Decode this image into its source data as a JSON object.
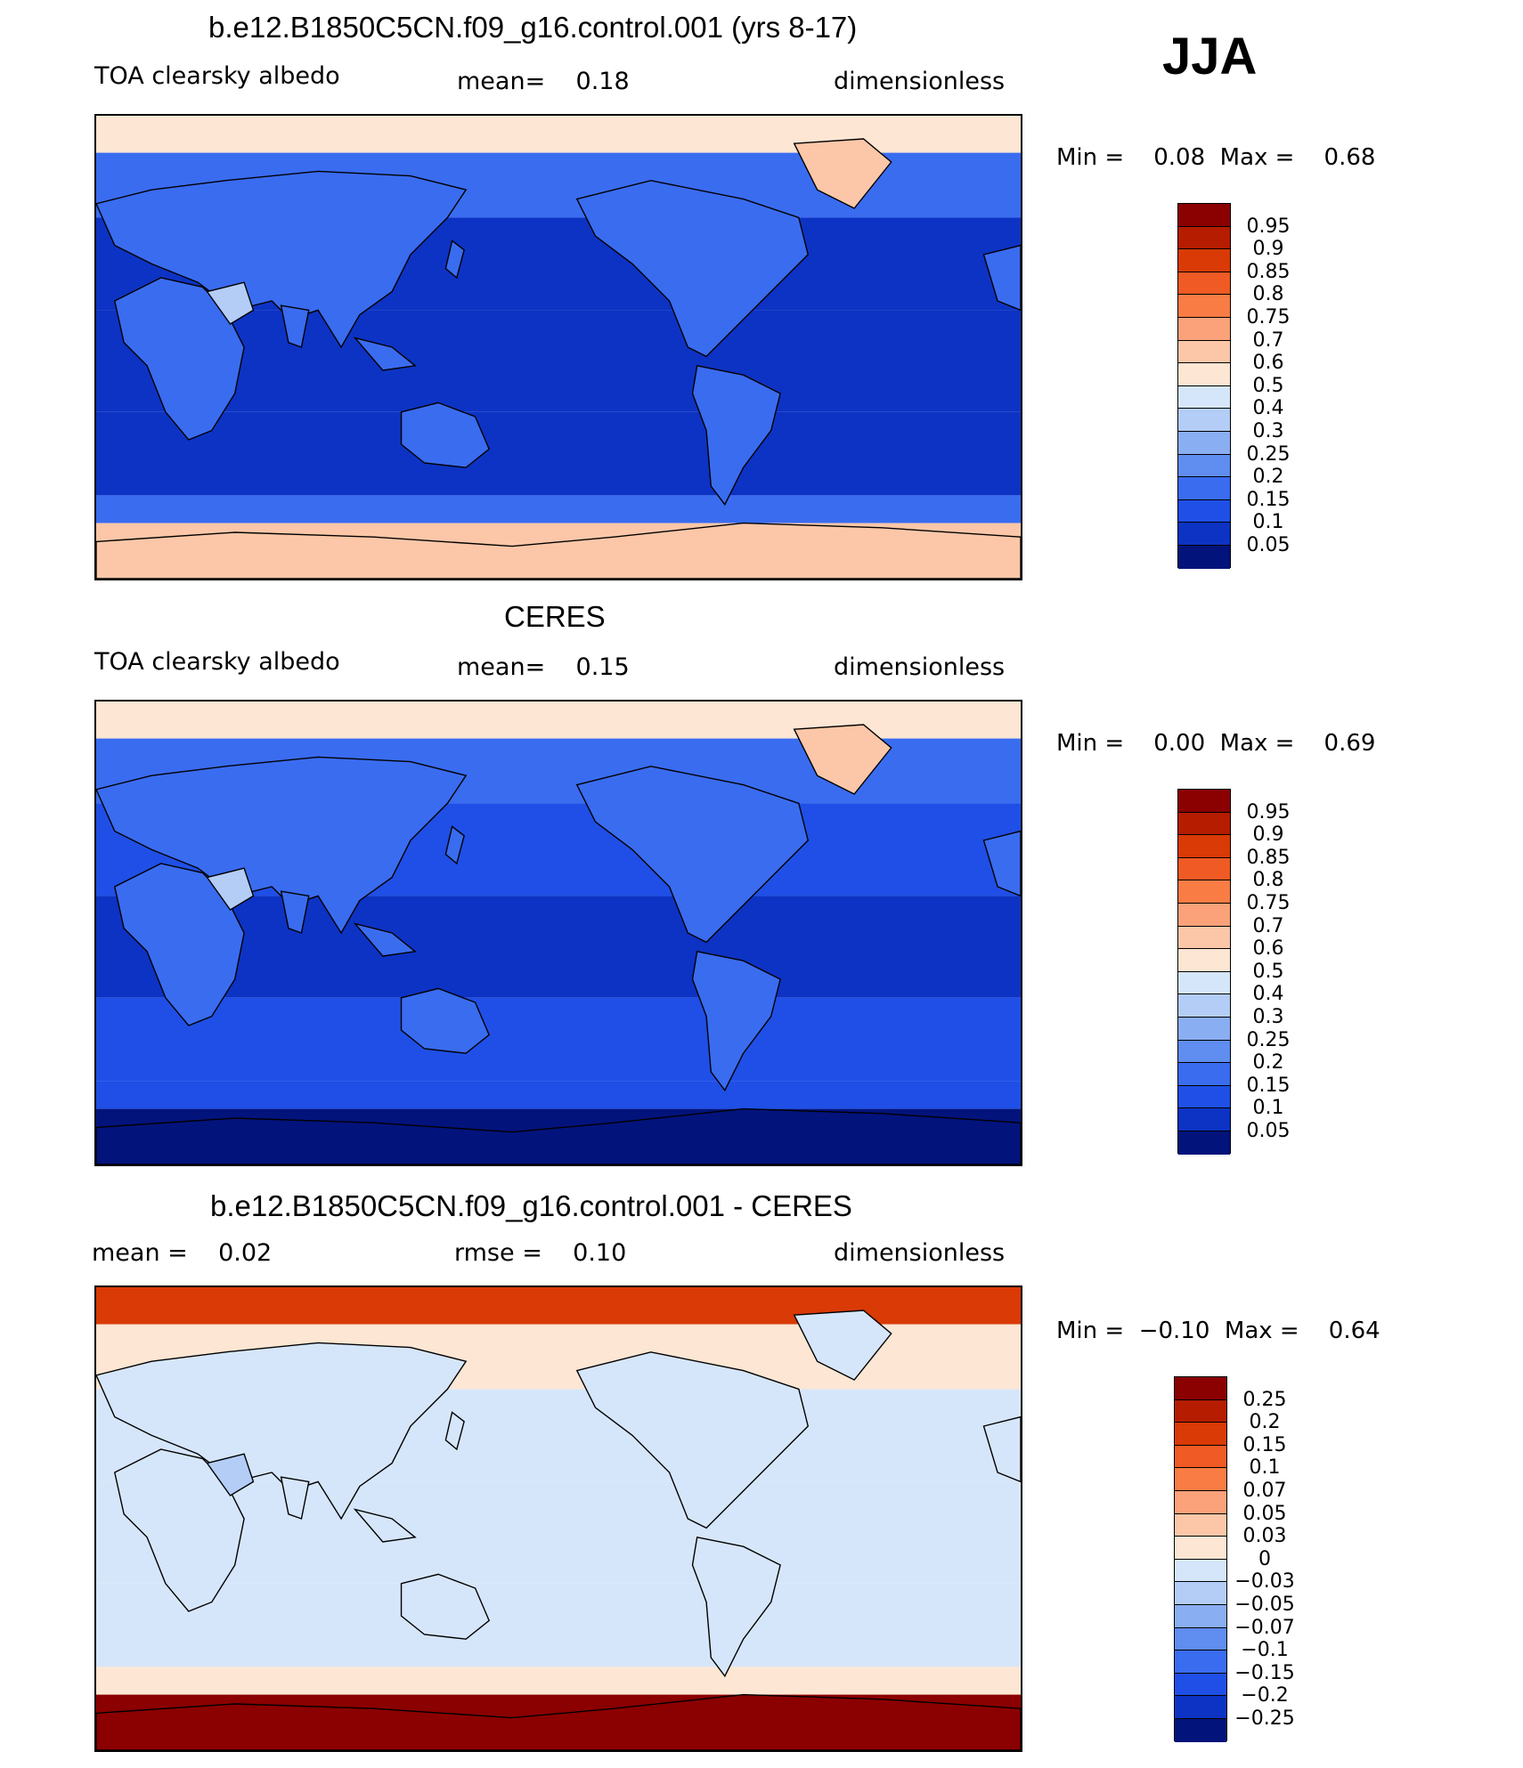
{
  "season": "JJA",
  "panels": [
    {
      "id": "model",
      "title": "b.e12.B1850C5CN.f09_g16.control.001 (yrs 8-17)",
      "left_label": "TOA clearsky albedo",
      "center_label": "mean=    0.18",
      "right_label": "dimensionless",
      "minmax": "Min =    0.08  Max =    0.68",
      "colorbar": {
        "labels": [
          "0.95",
          "0.9",
          "0.85",
          "0.8",
          "0.75",
          "0.7",
          "0.6",
          "0.5",
          "0.4",
          "0.3",
          "0.25",
          "0.2",
          "0.15",
          "0.1",
          "0.05"
        ],
        "colors": [
          "#8b0000",
          "#b51c00",
          "#d93a06",
          "#f05a24",
          "#f97c45",
          "#fba27a",
          "#fcc7a8",
          "#fde6d3",
          "#d6e6fa",
          "#b3cdf7",
          "#8aaef2",
          "#5f8df0",
          "#3a6cf0",
          "#1f4fe6",
          "#0d33c4",
          "#03137c"
        ]
      }
    },
    {
      "id": "obs",
      "title": "CERES",
      "left_label": "TOA clearsky albedo",
      "center_label": "mean=    0.15",
      "right_label": "dimensionless",
      "minmax": "Min =    0.00  Max =    0.69",
      "colorbar": {
        "labels": [
          "0.95",
          "0.9",
          "0.85",
          "0.8",
          "0.75",
          "0.7",
          "0.6",
          "0.5",
          "0.4",
          "0.3",
          "0.25",
          "0.2",
          "0.15",
          "0.1",
          "0.05"
        ],
        "colors": [
          "#8b0000",
          "#b51c00",
          "#d93a06",
          "#f05a24",
          "#f97c45",
          "#fba27a",
          "#fcc7a8",
          "#fde6d3",
          "#d6e6fa",
          "#b3cdf7",
          "#8aaef2",
          "#5f8df0",
          "#3a6cf0",
          "#1f4fe6",
          "#0d33c4",
          "#03137c"
        ]
      }
    },
    {
      "id": "diff",
      "title": "b.e12.B1850C5CN.f09_g16.control.001 - CERES",
      "left_label": "mean =    0.02",
      "center_label": "rmse =    0.10",
      "right_label": "dimensionless",
      "minmax": "Min =  −0.10  Max =    0.64",
      "colorbar": {
        "labels": [
          "0.25",
          "0.2",
          "0.15",
          "0.1",
          "0.07",
          "0.05",
          "0.03",
          "0",
          "−0.03",
          "−0.05",
          "−0.07",
          "−0.1",
          "−0.15",
          "−0.2",
          "−0.25"
        ],
        "colors": [
          "#8b0000",
          "#b51c00",
          "#d93a06",
          "#f05a24",
          "#f97c45",
          "#fba27a",
          "#fcc7a8",
          "#fde6d3",
          "#d6e6fa",
          "#b3cdf7",
          "#8aaef2",
          "#5f8df0",
          "#3a6cf0",
          "#1f4fe6",
          "#0d33c4",
          "#03137c"
        ]
      }
    }
  ],
  "map_fill": {
    "model": {
      "polar_north": "#fde6d3",
      "high_lat": "#3a6cf0",
      "ocean": "#0d33c4",
      "tropics": "#0d33c4",
      "land": "#3a6cf0",
      "desert": "#b3cdf7",
      "south_ocean": "#3a6cf0",
      "antarctic": "#fcc7a8",
      "greenland": "#fcc7a8"
    },
    "obs": {
      "polar_north": "#fde6d3",
      "high_lat": "#3a6cf0",
      "ocean": "#1f4fe6",
      "tropics": "#0d33c4",
      "land": "#3a6cf0",
      "desert": "#b3cdf7",
      "south_ocean": "#1f4fe6",
      "antarctic": "#03137c",
      "greenland": "#fcc7a8"
    },
    "diff": {
      "polar_north": "#d93a06",
      "high_lat": "#fde6d3",
      "ocean": "#d6e6fa",
      "tropics": "#d6e6fa",
      "land": "#d6e6fa",
      "desert": "#b3cdf7",
      "south_ocean": "#fde6d3",
      "antarctic": "#8b0000",
      "greenland": "#d6e6fa"
    }
  }
}
